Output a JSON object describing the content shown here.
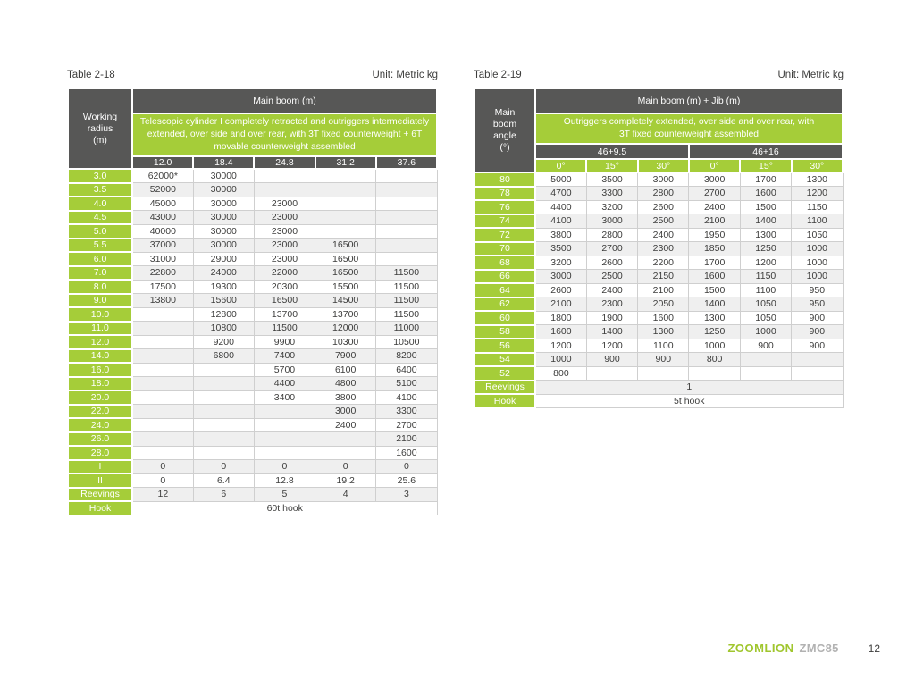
{
  "colors": {
    "accent_green": "#a5cd39",
    "header_dark": "#575756",
    "row_stripe": "#efefef",
    "grid_border": "#cfcfcf",
    "brand_green": "#a0c62e",
    "model_gray": "#b2b2b2"
  },
  "footer": {
    "brand": "ZOOMLION",
    "model": "ZMC85",
    "page_number": "12"
  },
  "table1": {
    "caption": "Table 2-18",
    "unit": "Unit: Metric kg",
    "corner_header": "Working\nradius\n(m)",
    "main_header": "Main boom (m)",
    "condition": "Telescopic cylinder I completely retracted and outriggers intermediately extended, over side and over rear, with 3T fixed counterweight + 6T movable counterweight assembled",
    "columns": [
      "12.0",
      "18.4",
      "24.8",
      "31.2",
      "37.6"
    ],
    "rows": [
      {
        "label": "3.0",
        "values": [
          "62000*",
          "30000",
          "",
          "",
          ""
        ]
      },
      {
        "label": "3.5",
        "values": [
          "52000",
          "30000",
          "",
          "",
          ""
        ]
      },
      {
        "label": "4.0",
        "values": [
          "45000",
          "30000",
          "23000",
          "",
          ""
        ]
      },
      {
        "label": "4.5",
        "values": [
          "43000",
          "30000",
          "23000",
          "",
          ""
        ]
      },
      {
        "label": "5.0",
        "values": [
          "40000",
          "30000",
          "23000",
          "",
          ""
        ]
      },
      {
        "label": "5.5",
        "values": [
          "37000",
          "30000",
          "23000",
          "16500",
          ""
        ]
      },
      {
        "label": "6.0",
        "values": [
          "31000",
          "29000",
          "23000",
          "16500",
          ""
        ]
      },
      {
        "label": "7.0",
        "values": [
          "22800",
          "24000",
          "22000",
          "16500",
          "11500"
        ]
      },
      {
        "label": "8.0",
        "values": [
          "17500",
          "19300",
          "20300",
          "15500",
          "11500"
        ]
      },
      {
        "label": "9.0",
        "values": [
          "13800",
          "15600",
          "16500",
          "14500",
          "11500"
        ]
      },
      {
        "label": "10.0",
        "values": [
          "",
          "12800",
          "13700",
          "13700",
          "11500"
        ]
      },
      {
        "label": "11.0",
        "values": [
          "",
          "10800",
          "11500",
          "12000",
          "11000"
        ]
      },
      {
        "label": "12.0",
        "values": [
          "",
          "9200",
          "9900",
          "10300",
          "10500"
        ]
      },
      {
        "label": "14.0",
        "values": [
          "",
          "6800",
          "7400",
          "7900",
          "8200"
        ]
      },
      {
        "label": "16.0",
        "values": [
          "",
          "",
          "5700",
          "6100",
          "6400"
        ]
      },
      {
        "label": "18.0",
        "values": [
          "",
          "",
          "4400",
          "4800",
          "5100"
        ]
      },
      {
        "label": "20.0",
        "values": [
          "",
          "",
          "3400",
          "3800",
          "4100"
        ]
      },
      {
        "label": "22.0",
        "values": [
          "",
          "",
          "",
          "3000",
          "3300"
        ]
      },
      {
        "label": "24.0",
        "values": [
          "",
          "",
          "",
          "2400",
          "2700"
        ]
      },
      {
        "label": "26.0",
        "values": [
          "",
          "",
          "",
          "",
          "2100"
        ]
      },
      {
        "label": "28.0",
        "values": [
          "",
          "",
          "",
          "",
          "1600"
        ]
      },
      {
        "label": "I",
        "values": [
          "0",
          "0",
          "0",
          "0",
          "0"
        ]
      },
      {
        "label": "II",
        "values": [
          "0",
          "6.4",
          "12.8",
          "19.2",
          "25.6"
        ]
      },
      {
        "label": "Reevings",
        "values": [
          "12",
          "6",
          "5",
          "4",
          "3"
        ]
      },
      {
        "label": "Hook",
        "span_value": "60t hook"
      }
    ]
  },
  "table2": {
    "caption": "Table 2-19",
    "unit": "Unit: Metric kg",
    "corner_header": "Main\nboom\nangle\n(°)",
    "main_header": "Main boom (m) + Jib (m)",
    "condition": "Outriggers completely extended, over side and over rear, with 3T fixed counterweight assembled",
    "groups": [
      "46+9.5",
      "46+16"
    ],
    "columns": [
      "0°",
      "15°",
      "30°",
      "0°",
      "15°",
      "30°"
    ],
    "rows": [
      {
        "label": "80",
        "values": [
          "5000",
          "3500",
          "3000",
          "3000",
          "1700",
          "1300"
        ]
      },
      {
        "label": "78",
        "values": [
          "4700",
          "3300",
          "2800",
          "2700",
          "1600",
          "1200"
        ]
      },
      {
        "label": "76",
        "values": [
          "4400",
          "3200",
          "2600",
          "2400",
          "1500",
          "1150"
        ]
      },
      {
        "label": "74",
        "values": [
          "4100",
          "3000",
          "2500",
          "2100",
          "1400",
          "1100"
        ]
      },
      {
        "label": "72",
        "values": [
          "3800",
          "2800",
          "2400",
          "1950",
          "1300",
          "1050"
        ]
      },
      {
        "label": "70",
        "values": [
          "3500",
          "2700",
          "2300",
          "1850",
          "1250",
          "1000"
        ]
      },
      {
        "label": "68",
        "values": [
          "3200",
          "2600",
          "2200",
          "1700",
          "1200",
          "1000"
        ]
      },
      {
        "label": "66",
        "values": [
          "3000",
          "2500",
          "2150",
          "1600",
          "1150",
          "1000"
        ]
      },
      {
        "label": "64",
        "values": [
          "2600",
          "2400",
          "2100",
          "1500",
          "1100",
          "950"
        ]
      },
      {
        "label": "62",
        "values": [
          "2100",
          "2300",
          "2050",
          "1400",
          "1050",
          "950"
        ]
      },
      {
        "label": "60",
        "values": [
          "1800",
          "1900",
          "1600",
          "1300",
          "1050",
          "900"
        ]
      },
      {
        "label": "58",
        "values": [
          "1600",
          "1400",
          "1300",
          "1250",
          "1000",
          "900"
        ]
      },
      {
        "label": "56",
        "values": [
          "1200",
          "1200",
          "1100",
          "1000",
          "900",
          "900"
        ]
      },
      {
        "label": "54",
        "values": [
          "1000",
          "900",
          "900",
          "800",
          "",
          ""
        ]
      },
      {
        "label": "52",
        "values": [
          "800",
          "",
          "",
          "",
          "",
          ""
        ]
      },
      {
        "label": "Reevings",
        "span_value": "1"
      },
      {
        "label": "Hook",
        "span_value": "5t hook"
      }
    ]
  }
}
